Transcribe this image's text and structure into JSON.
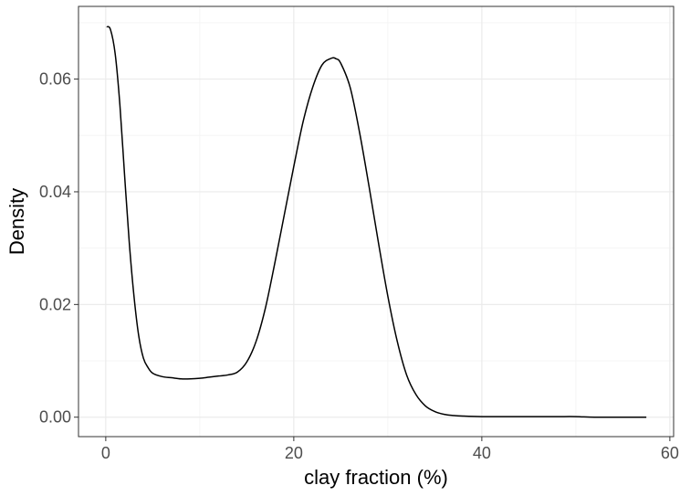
{
  "chart_data": {
    "type": "line",
    "title": "",
    "xlabel": "clay fraction (%)",
    "ylabel": "Density",
    "xlim": [
      -2.9,
      60.4
    ],
    "ylim": [
      -0.00345,
      0.0729
    ],
    "x_ticks": [
      0,
      20,
      40,
      60
    ],
    "x_tick_labels": [
      "0",
      "20",
      "40",
      "60"
    ],
    "y_ticks": [
      0.0,
      0.02,
      0.04,
      0.06
    ],
    "y_tick_labels": [
      "0.00",
      "0.02",
      "0.04",
      "0.06"
    ],
    "grid": true,
    "legend": "none",
    "colors": {
      "line": "#000000",
      "grid_major": "#ebebeb",
      "grid_minor": "#f5f5f5",
      "panel_border": "#333333"
    },
    "series": [
      {
        "x": [
          0.1,
          0.5,
          1.0,
          1.5,
          2.0,
          2.5,
          3.0,
          3.5,
          4.0,
          4.5,
          5.0,
          6.0,
          7.0,
          8.0,
          9.0,
          10.0,
          11.0,
          12.0,
          13.0,
          14.0,
          15.0,
          16.0,
          17.0,
          18.0,
          19.0,
          20.0,
          21.0,
          22.0,
          23.0,
          24.0,
          24.5,
          25.0,
          26.0,
          27.0,
          28.0,
          29.0,
          30.0,
          31.0,
          32.0,
          33.0,
          34.0,
          35.0,
          36.0,
          37.0,
          38.0,
          40.0,
          42.0,
          45.0,
          48.0,
          50.0,
          52.0,
          55.0,
          57.5
        ],
        "y": [
          0.0693,
          0.0688,
          0.0645,
          0.0555,
          0.043,
          0.031,
          0.0215,
          0.0145,
          0.0105,
          0.0088,
          0.0078,
          0.0072,
          0.007,
          0.0068,
          0.0068,
          0.0069,
          0.0071,
          0.0073,
          0.0075,
          0.008,
          0.0098,
          0.0135,
          0.0195,
          0.0275,
          0.036,
          0.0445,
          0.0525,
          0.0585,
          0.0625,
          0.0637,
          0.0636,
          0.0628,
          0.0585,
          0.0505,
          0.041,
          0.031,
          0.0215,
          0.0135,
          0.0075,
          0.004,
          0.002,
          0.001,
          0.0005,
          0.0003,
          0.0002,
          0.0001,
          0.0001,
          0.0001,
          0.0001,
          0.0001,
          0.0,
          0.0,
          0.0
        ]
      }
    ]
  }
}
